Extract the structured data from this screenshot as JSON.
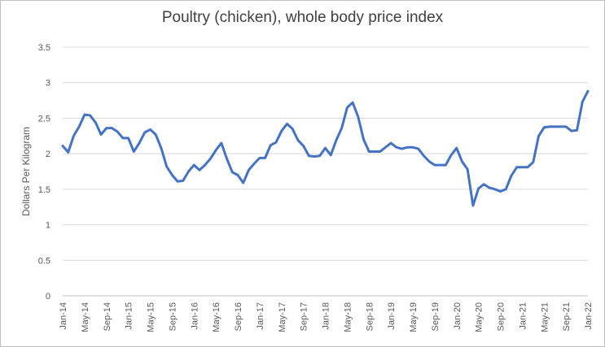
{
  "chart_data": {
    "type": "line",
    "title": "Poultry (chicken), whole body price index",
    "xlabel": "",
    "ylabel": "Dollars Per Kilogram",
    "ylim": [
      0,
      3.5
    ],
    "yticks": [
      "0",
      "0.5",
      "1",
      "1.5",
      "2",
      "2.5",
      "3",
      "3.5"
    ],
    "xtick_labels": [
      "Jan-14",
      "May-14",
      "Sep-14",
      "Jan-15",
      "May-15",
      "Sep-15",
      "Jan-16",
      "May-16",
      "Sep-16",
      "Jan-17",
      "May-17",
      "Sep-17",
      "Jan-18",
      "May-18",
      "Sep-18",
      "Jan-19",
      "May-19",
      "Sep-19",
      "Jan-20",
      "May-20",
      "Sep-20",
      "Jan-21",
      "May-21",
      "Sep-21",
      "Jan-22"
    ],
    "grid": true,
    "legend": "none",
    "line_color": "#4472C4",
    "series": [
      {
        "name": "Poultry (chicken), whole body",
        "start": "Jan-14",
        "values": [
          2.11,
          2.02,
          2.25,
          2.38,
          2.55,
          2.54,
          2.44,
          2.27,
          2.36,
          2.36,
          2.31,
          2.22,
          2.22,
          2.03,
          2.15,
          2.3,
          2.34,
          2.27,
          2.08,
          1.82,
          1.7,
          1.61,
          1.62,
          1.75,
          1.84,
          1.77,
          1.84,
          1.93,
          2.05,
          2.15,
          1.93,
          1.74,
          1.7,
          1.59,
          1.77,
          1.86,
          1.94,
          1.94,
          2.12,
          2.16,
          2.32,
          2.42,
          2.35,
          2.19,
          2.11,
          1.97,
          1.96,
          1.97,
          2.08,
          1.98,
          2.19,
          2.36,
          2.65,
          2.72,
          2.52,
          2.2,
          2.03,
          2.03,
          2.03,
          2.09,
          2.15,
          2.09,
          2.07,
          2.09,
          2.09,
          2.07,
          1.97,
          1.89,
          1.84,
          1.84,
          1.84,
          1.98,
          2.08,
          1.89,
          1.78,
          1.27,
          1.51,
          1.57,
          1.52,
          1.5,
          1.47,
          1.5,
          1.69,
          1.81,
          1.81,
          1.81,
          1.88,
          2.25,
          2.37,
          2.38,
          2.38,
          2.38,
          2.38,
          2.32,
          2.33,
          2.73,
          2.88
        ]
      }
    ]
  }
}
